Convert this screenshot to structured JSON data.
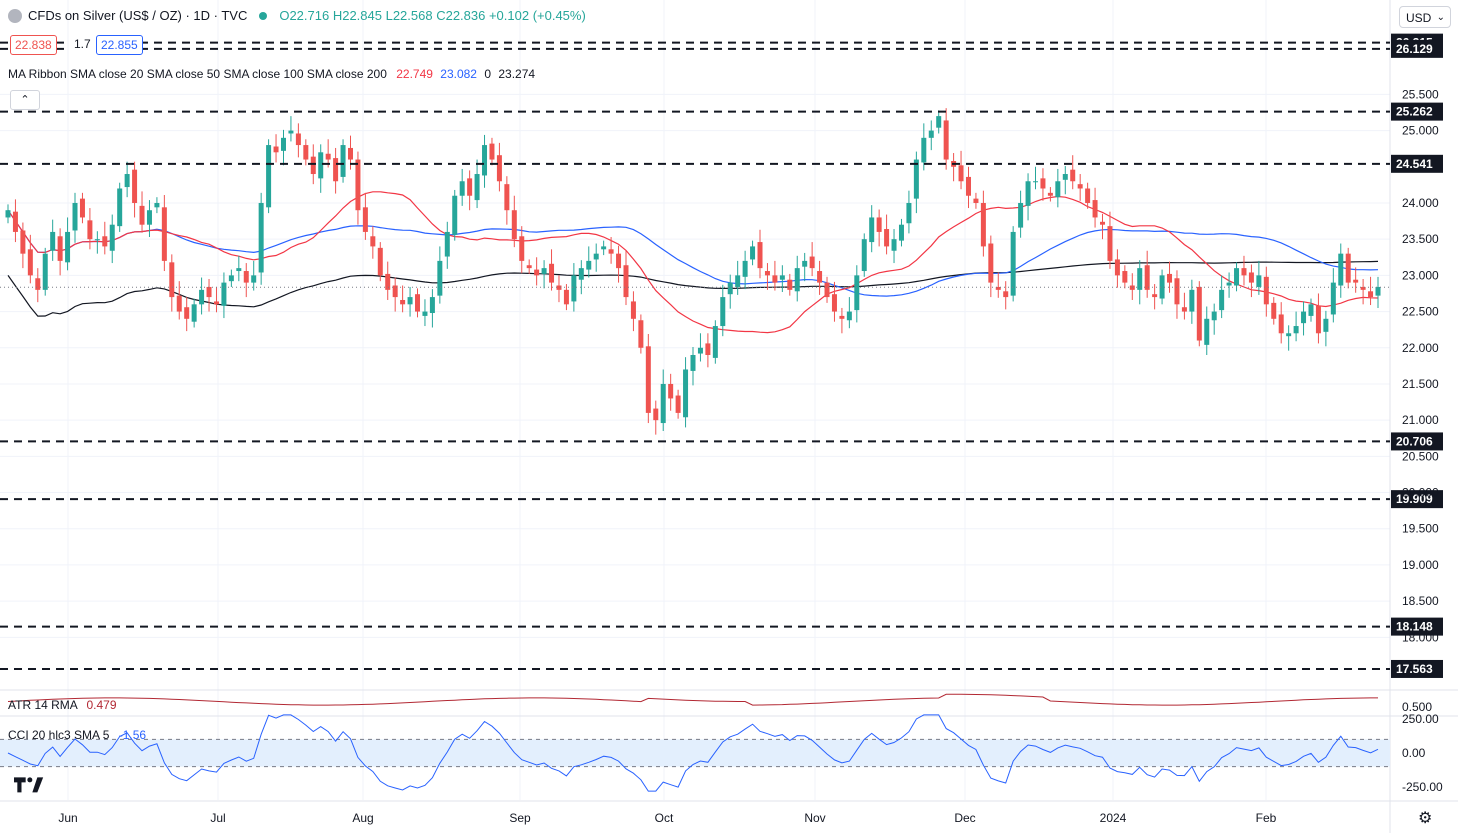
{
  "header": {
    "symbol": "CFDs on Silver (US$ / OZ) · 1D · TVC",
    "ohlc": "O22.716  H22.845  L22.568  C22.836  +0.102 (+0.45%)",
    "bid": "22.838",
    "spread": "1.7",
    "ask": "22.855",
    "currency": "USD",
    "ma_label": "MA Ribbon SMA close 20 SMA close 50 SMA close 100 SMA close 200",
    "ma_values": [
      "22.749",
      "23.082",
      "0",
      "23.274"
    ],
    "atr_label": "ATR 14 RMA",
    "atr_value": "0.479",
    "cci_label": "CCI 20 hlc3 SMA 5",
    "cci_value": "-1.56"
  },
  "colors": {
    "up": "#26a69a",
    "down": "#ef5350",
    "sma20": "#f23645",
    "sma50": "#2962ff",
    "sma200": "#131722",
    "cci": "#2962ff",
    "atr": "#b22833"
  },
  "chart_data": [
    {
      "type": "candlestick",
      "title": "CFDs on Silver (US$ / OZ) · 1D · TVC",
      "x_ticks": [
        "Jun",
        "Jul",
        "Aug",
        "Sep",
        "Oct",
        "Nov",
        "Dec",
        "2024",
        "Feb"
      ],
      "ylim": [
        17.3,
        26.5
      ],
      "y_ticks": [
        "25.500",
        "25.000",
        "24.000",
        "23.500",
        "23.000",
        "22.500",
        "22.000",
        "21.500",
        "21.000",
        "20.500",
        "20.000",
        "19.500",
        "19.000",
        "18.500",
        "18.000"
      ],
      "horizontal_levels": [
        "26.215",
        "26.129",
        "25.262",
        "24.541",
        "20.706",
        "19.909",
        "18.148",
        "17.563"
      ],
      "last_price": 22.836,
      "closes": [
        23.9,
        23.6,
        23.3,
        23.0,
        22.8,
        23.3,
        23.6,
        23.2,
        23.6,
        24.0,
        23.8,
        23.5,
        23.5,
        23.4,
        23.7,
        24.2,
        24.4,
        24.0,
        23.7,
        23.9,
        24.0,
        23.2,
        22.7,
        22.5,
        22.4,
        22.6,
        22.8,
        22.7,
        22.6,
        22.9,
        23.0,
        23.1,
        22.9,
        23.0,
        24.0,
        24.8,
        24.7,
        24.9,
        25.0,
        24.8,
        24.6,
        24.4,
        24.7,
        24.6,
        24.3,
        24.8,
        24.6,
        23.9,
        23.6,
        23.4,
        23.0,
        22.8,
        22.7,
        22.6,
        22.7,
        22.5,
        22.5,
        22.7,
        23.2,
        23.6,
        24.1,
        24.3,
        24.1,
        24.4,
        24.8,
        24.6,
        24.3,
        23.9,
        23.5,
        23.2,
        23.1,
        23.0,
        23.1,
        22.9,
        22.8,
        22.6,
        23.0,
        23.1,
        23.2,
        23.3,
        23.4,
        23.3,
        23.1,
        22.7,
        22.4,
        22.0,
        21.1,
        21.0,
        21.5,
        21.3,
        21.1,
        21.7,
        21.9,
        22.0,
        21.9,
        22.3,
        22.7,
        22.9,
        23.0,
        23.2,
        23.4,
        23.1,
        23.0,
        22.9,
        23.0,
        22.8,
        23.1,
        23.2,
        23.1,
        22.9,
        22.7,
        22.5,
        22.4,
        22.5,
        23.0,
        23.5,
        23.8,
        23.6,
        23.4,
        23.5,
        23.7,
        24.0,
        24.6,
        24.9,
        25.0,
        25.2,
        24.6,
        24.5,
        24.3,
        24.1,
        24.0,
        23.4,
        22.9,
        22.8,
        22.7,
        23.6,
        24.0,
        24.3,
        24.3,
        24.2,
        24.1,
        24.3,
        24.4,
        24.3,
        24.2,
        24.0,
        23.8,
        23.7,
        23.2,
        23.0,
        22.9,
        22.8,
        23.1,
        22.8,
        22.7,
        23.0,
        22.9,
        22.6,
        22.5,
        22.8,
        22.1,
        22.4,
        22.5,
        22.8,
        22.9,
        23.1,
        23.0,
        22.9,
        23.0,
        22.6,
        22.4,
        22.2,
        22.2,
        22.3,
        22.5,
        22.6,
        22.2,
        22.4,
        22.9,
        23.3,
        22.9,
        22.9,
        22.8,
        22.7,
        22.84
      ],
      "series": [
        {
          "name": "SMA close 20",
          "last": 22.749
        },
        {
          "name": "SMA close 50",
          "last": 23.082
        },
        {
          "name": "SMA close 200",
          "last": 23.274
        }
      ]
    },
    {
      "type": "line",
      "title": "ATR 14 RMA",
      "y_ticks": [
        "0.500"
      ],
      "last": 0.479
    },
    {
      "type": "line",
      "title": "CCI 20 hlc3 SMA 5",
      "y_ticks": [
        "250.00",
        "0.00",
        "-250.00"
      ],
      "band": [
        100,
        -100
      ],
      "last": -1.56
    }
  ]
}
